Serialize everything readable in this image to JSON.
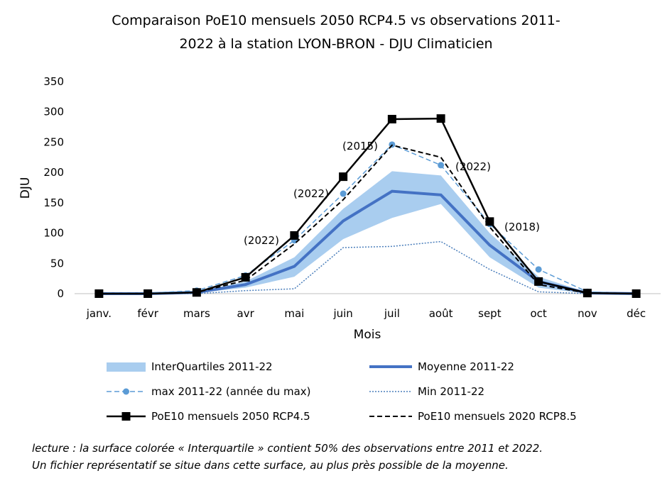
{
  "chart_data": {
    "type": "line",
    "title": [
      "Comparaison PoE10 mensuels 2050 RCP4.5 vs observations 2011-",
      "2022 à la station LYON-BRON - DJU Climaticien"
    ],
    "x_label": "Mois",
    "y_label": "DJU",
    "categories": [
      "janv.",
      "févr",
      "mars",
      "avr",
      "mai",
      "juin",
      "juil",
      "août",
      "sept",
      "oct",
      "nov",
      "déc"
    ],
    "ylim": [
      0,
      350
    ],
    "yticks": [
      0,
      50,
      100,
      150,
      200,
      250,
      300,
      350
    ],
    "series": [
      {
        "name": "InterQuartiles 2011-22",
        "color": "#a9cdef",
        "style": "area",
        "lower": [
          0,
          0,
          1,
          10,
          28,
          90,
          125,
          148,
          60,
          10,
          0,
          0
        ],
        "upper": [
          0,
          1,
          3,
          20,
          60,
          140,
          202,
          195,
          100,
          28,
          2,
          0
        ]
      },
      {
        "name": "Moyenne 2011-22",
        "color": "#4472c4",
        "style": "solid",
        "width": 4,
        "values": [
          0,
          0,
          2,
          15,
          45,
          120,
          169,
          163,
          80,
          20,
          1,
          0
        ]
      },
      {
        "name": "max 2011-22 (année du max)",
        "color": "#5b9bd5",
        "style": "dashed",
        "width": 1.5,
        "marker": "circle",
        "values": [
          1,
          1,
          5,
          30,
          88,
          165,
          246,
          212,
          115,
          40,
          3,
          0
        ]
      },
      {
        "name": "Min 2011-22",
        "color": "#4a7ebb",
        "style": "dotted",
        "width": 1.5,
        "values": [
          0,
          0,
          0,
          5,
          8,
          76,
          78,
          86,
          40,
          3,
          0,
          0
        ]
      },
      {
        "name": "PoE10 mensuels 2050 RCP4.5",
        "color": "#000000",
        "style": "solid",
        "width": 2.5,
        "marker": "square",
        "values": [
          0,
          0,
          2,
          27,
          96,
          193,
          288,
          289,
          119,
          20,
          1,
          0
        ]
      },
      {
        "name": "PoE10 mensuels 2020 RCP8.5",
        "color": "#000000",
        "style": "dashed",
        "width": 2,
        "values": [
          0,
          0,
          2,
          22,
          82,
          155,
          245,
          225,
          110,
          15,
          1,
          0
        ]
      }
    ],
    "annotations": [
      "(2022)",
      "(2022)",
      "(2015)",
      "(2022)",
      "(2018)"
    ],
    "note": [
      "lecture : la surface colorée « Interquartile » contient 50% des observations entre 2011 et 2022.",
      "Un fichier représentatif se situe dans cette surface, au plus près possible de la moyenne."
    ]
  }
}
